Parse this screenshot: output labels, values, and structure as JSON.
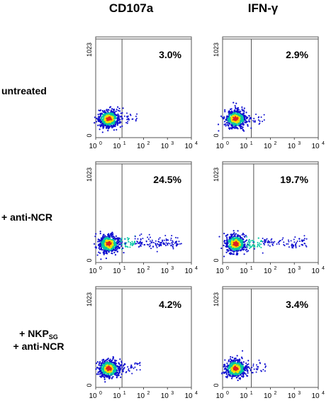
{
  "columns": [
    "CD107a",
    "IFN-γ"
  ],
  "rows": [
    {
      "label": "untreated"
    },
    {
      "label": "+ anti-NCR"
    },
    {
      "label_line1_prefix": "+ NKP",
      "label_line1_sub": "SG",
      "label_line2": "+ anti-NCR"
    }
  ],
  "chart_data": [
    {
      "type": "scatter",
      "column": "CD107a",
      "row": "untreated",
      "percent_label": "3.0%",
      "value_percent": 3.0,
      "spread": 0.15,
      "xlim_decades": [
        0,
        4
      ],
      "ylim": [
        0,
        1023
      ],
      "gate_x_decade": 1.1
    },
    {
      "type": "scatter",
      "column": "IFN-γ",
      "row": "untreated",
      "percent_label": "2.9%",
      "value_percent": 2.9,
      "spread": 0.15,
      "xlim_decades": [
        0,
        4
      ],
      "ylim": [
        0,
        1023
      ],
      "gate_x_decade": 1.2
    },
    {
      "type": "scatter",
      "column": "CD107a",
      "row": "+ anti-NCR",
      "percent_label": "24.5%",
      "value_percent": 24.5,
      "spread": 0.95,
      "xlim_decades": [
        0,
        4
      ],
      "ylim": [
        0,
        1023
      ],
      "gate_x_decade": 1.1
    },
    {
      "type": "scatter",
      "column": "IFN-γ",
      "row": "+ anti-NCR",
      "percent_label": "19.7%",
      "value_percent": 19.7,
      "spread": 0.95,
      "xlim_decades": [
        0,
        4
      ],
      "ylim": [
        0,
        1023
      ],
      "gate_x_decade": 1.3
    },
    {
      "type": "scatter",
      "column": "CD107a",
      "row": "+ NKP_SG + anti-NCR",
      "percent_label": "4.2%",
      "value_percent": 4.2,
      "spread": 0.2,
      "xlim_decades": [
        0,
        4
      ],
      "ylim": [
        0,
        1023
      ],
      "gate_x_decade": 1.1
    },
    {
      "type": "scatter",
      "column": "IFN-γ",
      "row": "+ NKP_SG + anti-NCR",
      "percent_label": "3.4%",
      "value_percent": 3.4,
      "spread": 0.2,
      "xlim_decades": [
        0,
        4
      ],
      "ylim": [
        0,
        1023
      ],
      "gate_x_decade": 1.2
    }
  ],
  "axis": {
    "y_tick_top": "1023",
    "y_tick_bottom": "0",
    "x_tick_base": "10",
    "x_tick_exponents": [
      "0",
      "1",
      "2",
      "3",
      "4"
    ]
  },
  "colors": {
    "frame": "#555555",
    "dots_outer": "#1010d0",
    "dots_mid": "#00c8a0",
    "dots_core": "#f0e000",
    "dots_hot": "#e02020"
  }
}
